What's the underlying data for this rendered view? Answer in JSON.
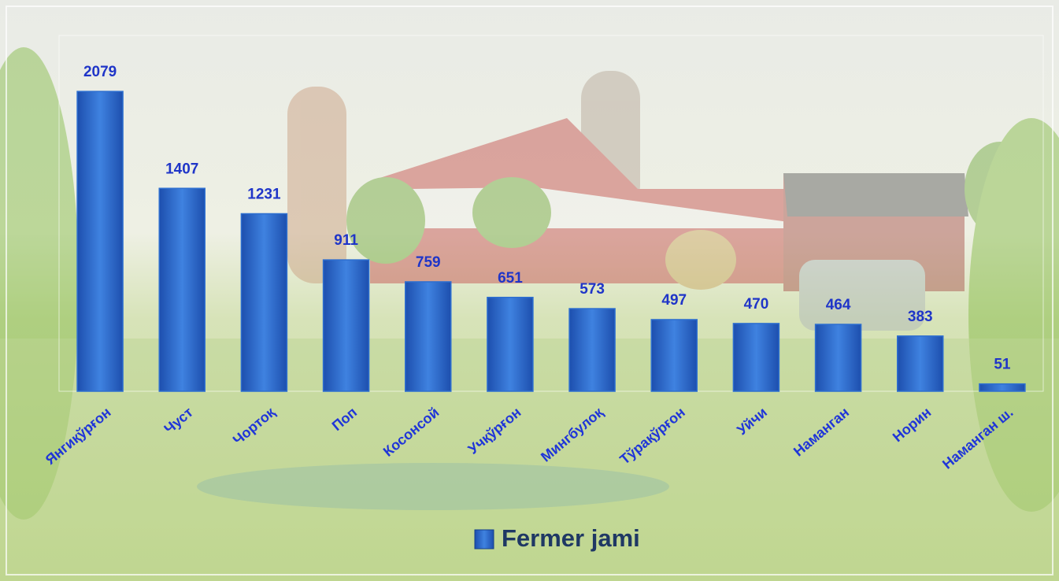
{
  "chart_data": {
    "type": "bar",
    "series": [
      {
        "name": "Fermer jami",
        "color": "#2e6fd0",
        "values": [
          2079,
          1407,
          1231,
          911,
          759,
          651,
          573,
          497,
          470,
          464,
          383,
          51
        ]
      }
    ],
    "categories": [
      "Янгиқўрғон",
      "Чуст",
      "Чортоқ",
      "Поп",
      "Косонсой",
      "Учқўрғон",
      "Мингбулоқ",
      "Тўрақўрғон",
      "Уйчи",
      "Наманган",
      "Норин",
      "Наманган ш."
    ],
    "ylim": [
      0,
      2500
    ],
    "legend": "bottom"
  }
}
